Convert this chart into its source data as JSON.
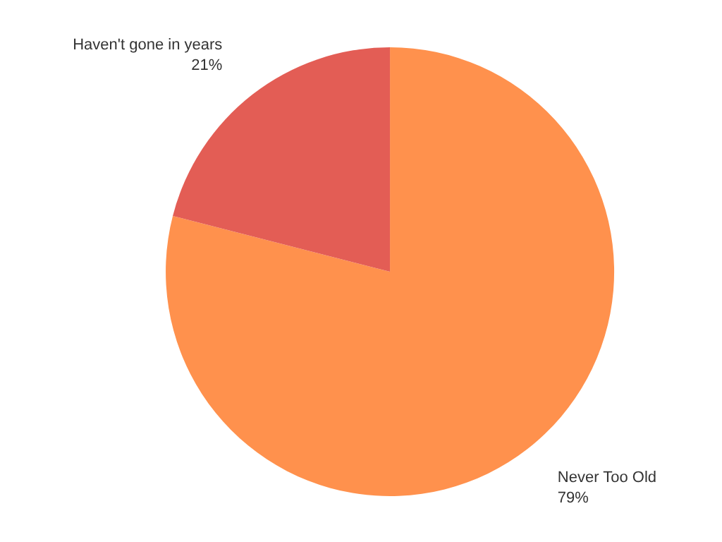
{
  "chart_data": {
    "type": "pie",
    "categories": [
      "Never Too Old",
      "Haven't gone in years"
    ],
    "values": [
      79,
      21
    ],
    "value_labels": [
      "79%",
      "21%"
    ],
    "colors": [
      "#ff914d",
      "#e35d55"
    ]
  }
}
